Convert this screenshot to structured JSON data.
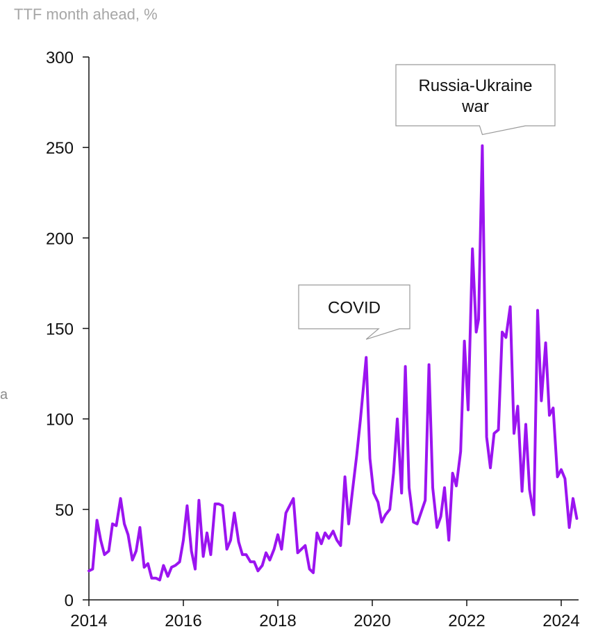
{
  "chart_data": {
    "type": "line",
    "ylabel": "TTF month ahead, %",
    "edge_text": "a",
    "ylim": [
      0,
      300
    ],
    "yticks": [
      0,
      50,
      100,
      150,
      200,
      250,
      300
    ],
    "xlim": [
      2014,
      2024.33
    ],
    "xticks": [
      2014,
      2016,
      2018,
      2020,
      2022,
      2024
    ],
    "grid": false,
    "color": "#9b14f0",
    "annotations": [
      {
        "lines": [
          "COVID"
        ],
        "x": 2019.87,
        "y": 134
      },
      {
        "lines": [
          "Russia-Ukraine",
          "war"
        ],
        "x": 2022.33,
        "y": 251
      }
    ],
    "series": [
      {
        "x": [
          2014.0,
          2014.08,
          2014.17,
          2014.25,
          2014.33,
          2014.42,
          2014.5,
          2014.58,
          2014.67,
          2014.75,
          2014.83,
          2014.92,
          2015.0,
          2015.08,
          2015.17,
          2015.25,
          2015.33,
          2015.42,
          2015.5,
          2015.58,
          2015.67,
          2015.75,
          2015.83,
          2015.92,
          2016.0,
          2016.08,
          2016.17,
          2016.25,
          2016.33,
          2016.42,
          2016.5,
          2016.58,
          2016.67,
          2016.75,
          2016.83,
          2016.92,
          2017.0,
          2017.08,
          2017.17,
          2017.25,
          2017.33,
          2017.42,
          2017.5,
          2017.58,
          2017.67,
          2017.75,
          2017.83,
          2017.92,
          2018.0,
          2018.08,
          2018.17,
          2018.25,
          2018.33,
          2018.42,
          2018.5,
          2018.58,
          2018.67,
          2018.75,
          2018.83,
          2018.92,
          2019.0,
          2019.08,
          2019.17,
          2019.25,
          2019.33,
          2019.42,
          2019.5,
          2019.58,
          2019.67,
          2019.75,
          2019.87,
          2019.95,
          2020.03,
          2020.12,
          2020.2,
          2020.28,
          2020.37,
          2020.45,
          2020.53,
          2020.62,
          2020.7,
          2020.78,
          2020.87,
          2020.95,
          2021.03,
          2021.12,
          2021.2,
          2021.28,
          2021.37,
          2021.45,
          2021.53,
          2021.62,
          2021.7,
          2021.78,
          2021.87,
          2021.95,
          2022.03,
          2022.12,
          2022.2,
          2022.25,
          2022.33,
          2022.42,
          2022.5,
          2022.58,
          2022.67,
          2022.75,
          2022.83,
          2022.92,
          2023.0,
          2023.08,
          2023.17,
          2023.25,
          2023.33,
          2023.42,
          2023.5,
          2023.58,
          2023.67,
          2023.75,
          2023.83,
          2023.92,
          2024.0,
          2024.08,
          2024.17,
          2024.25,
          2024.33
        ],
        "y": [
          16,
          17,
          44,
          33,
          25,
          27,
          42,
          41,
          56,
          42,
          36,
          22,
          27,
          40,
          18,
          20,
          12,
          12,
          11,
          19,
          13,
          18,
          19,
          21,
          33,
          52,
          27,
          17,
          55,
          24,
          37,
          25,
          53,
          53,
          52,
          28,
          33,
          48,
          32,
          25,
          25,
          21,
          21,
          16,
          19,
          26,
          22,
          28,
          36,
          28,
          48,
          52,
          56,
          26,
          28,
          30,
          17,
          15,
          37,
          31,
          37,
          34,
          38,
          33,
          30,
          68,
          42,
          60,
          80,
          100,
          134,
          78,
          59,
          54,
          43,
          47,
          50,
          70,
          100,
          59,
          129,
          62,
          43,
          42,
          48,
          55,
          130,
          62,
          40,
          46,
          62,
          33,
          70,
          63,
          82,
          143,
          105,
          194,
          148,
          155,
          251,
          90,
          73,
          92,
          94,
          148,
          145,
          162,
          92,
          107,
          60,
          97,
          61,
          47,
          160,
          110,
          142,
          102,
          106,
          68,
          72,
          67,
          40,
          56,
          45
        ]
      }
    ]
  }
}
